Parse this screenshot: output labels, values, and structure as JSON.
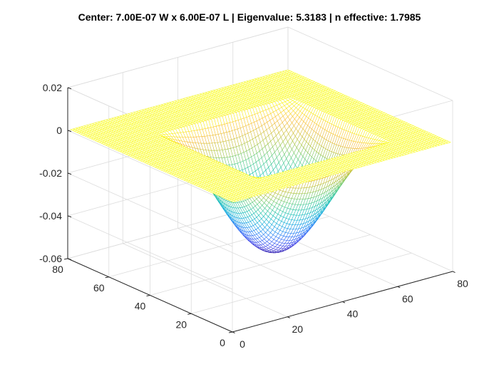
{
  "window": {
    "title": "Center: 7.00E-07 W x 6.00E-07 L | Eigenvalue: 5.3183 | n effective: 1.7985"
  },
  "chart_data": {
    "type": "surface",
    "title": "Center: 7.00E-07 W x 6.00E-07 L | Eigenvalue: 5.3183 | n effective: 1.7985",
    "xlabel": "",
    "ylabel": "",
    "zlabel": "",
    "colormap": "parula",
    "grid": true,
    "box": true,
    "x": {
      "range": [
        0,
        80
      ],
      "ticks": [
        0,
        20,
        40,
        60,
        80
      ],
      "tick_labels": [
        "0",
        "20",
        "40",
        "60",
        "80"
      ]
    },
    "y": {
      "range": [
        0,
        80
      ],
      "ticks": [
        0,
        20,
        40,
        60,
        80
      ],
      "tick_labels": [
        "0",
        "20",
        "40",
        "60",
        "80"
      ]
    },
    "z": {
      "range": [
        -0.06,
        0.02
      ],
      "ticks": [
        -0.06,
        -0.04,
        -0.02,
        0,
        0.02
      ],
      "tick_labels": [
        "-0.06",
        "-0.04",
        "-0.02",
        "0",
        "0.02"
      ]
    },
    "surface": {
      "grid_points": 80,
      "domain": [
        1,
        80
      ],
      "mode_region_x": [
        18,
        67
      ],
      "mode_region_y": [
        12,
        61
      ],
      "outer_value": 0,
      "min_value": -0.053,
      "shape": "sin(pi*u)*sin(pi*v) inside mode region, 0 outside"
    },
    "colors": {
      "axis": "#262626",
      "grid": "#dcdcdc",
      "colormap_low": "#3e26a8",
      "colormap_high": "#f9fb15"
    }
  }
}
